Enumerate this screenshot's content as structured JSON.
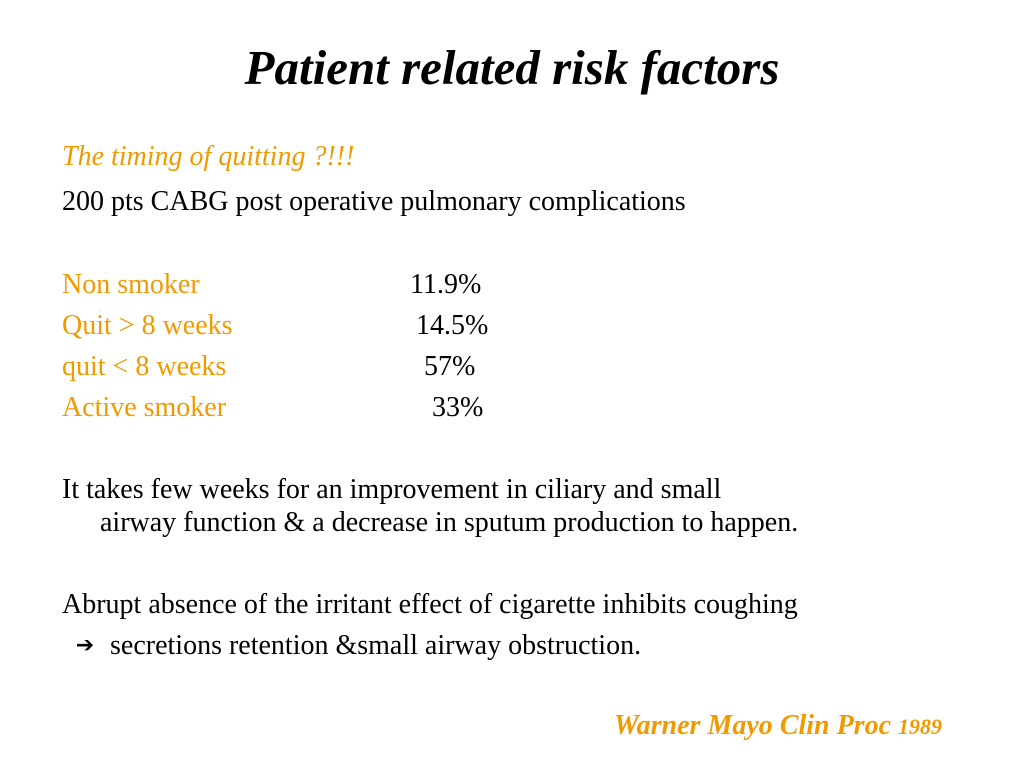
{
  "slide": {
    "title": "Patient related risk factors",
    "subtitle": "The timing of quitting  ?!!!",
    "study_line": "200 pts  CABG post operative pulmonary complications",
    "risk_table": [
      {
        "label": "Non smoker",
        "value": "11.9%"
      },
      {
        "label": "Quit > 8 weeks",
        "value": "14.5%"
      },
      {
        "label": "quit < 8 weeks",
        "value": "57%"
      },
      {
        "label": "Active smoker",
        "value": "33%"
      }
    ],
    "paragraph1": {
      "line1": "It takes few weeks for an improvement in ciliary and small",
      "line2": "airway function & a decrease in sputum production to happen."
    },
    "paragraph2": {
      "line1": "Abrupt absence of the irritant effect of cigarette inhibits coughing",
      "arrow_icon": "arrow-right-icon",
      "line2": "secretions retention &small airway obstruction."
    },
    "citation": {
      "text": "Warner Mayo Clin Proc ",
      "year": "1989"
    }
  },
  "colors": {
    "accent": "#F09A00",
    "text": "#000000",
    "background": "#ffffff"
  }
}
